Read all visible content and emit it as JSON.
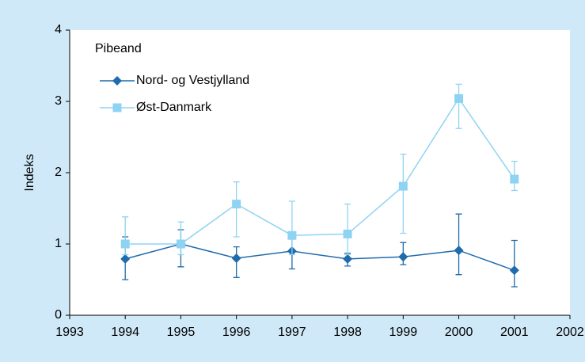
{
  "chart_data": {
    "type": "line",
    "annotation": "Pibeand",
    "ylabel": "Indeks",
    "x": [
      1994,
      1995,
      1996,
      1997,
      1998,
      1999,
      2000,
      2001
    ],
    "series": [
      {
        "name": "Nord- og Vestjylland",
        "color": "#1f6bab",
        "marker": "diamond",
        "values": [
          0.79,
          1.0,
          0.8,
          0.9,
          0.79,
          0.82,
          0.91,
          0.63
        ],
        "lower": [
          0.5,
          0.68,
          0.53,
          0.65,
          0.69,
          0.71,
          0.57,
          0.4
        ],
        "upper": [
          1.1,
          1.2,
          0.96,
          1.08,
          0.87,
          1.02,
          1.42,
          1.05
        ]
      },
      {
        "name": "Øst-Danmark",
        "color": "#8fd3f2",
        "marker": "square",
        "values": [
          1.0,
          1.0,
          1.56,
          1.12,
          1.14,
          1.81,
          3.04,
          1.91
        ],
        "lower": [
          0.85,
          0.85,
          1.1,
          0.85,
          0.85,
          1.15,
          2.62,
          1.75
        ],
        "upper": [
          1.38,
          1.31,
          1.87,
          1.6,
          1.56,
          2.26,
          3.24,
          2.16
        ]
      }
    ],
    "xlim": [
      1993,
      2002
    ],
    "xticks": [
      1993,
      1994,
      1995,
      1996,
      1997,
      1998,
      1999,
      2000,
      2001,
      2002
    ],
    "ylim": [
      0,
      4
    ],
    "yticks": [
      0,
      1,
      2,
      3,
      4
    ],
    "grid": false,
    "legend": "upper-left"
  }
}
